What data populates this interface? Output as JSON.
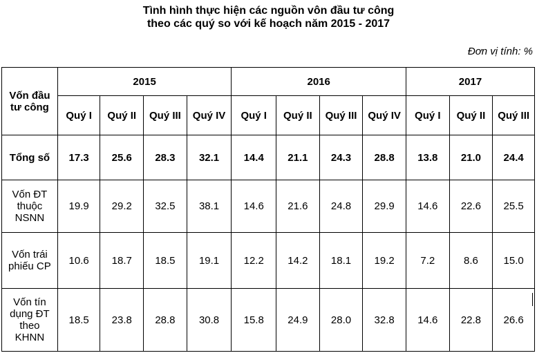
{
  "title_line1": "Tình hình thực hiện các nguồn vôn đầu tư công",
  "title_line2": "theo các quý so với kế hoạch năm 2015 - 2017",
  "unit": "Đơn vị tính: %",
  "header": {
    "corner": "Vốn đầu tư công",
    "years": [
      "2015",
      "2016",
      "2017"
    ],
    "quarters": [
      "Quý I",
      "Quý II",
      "Quý III",
      "Quý IV",
      "Quý I",
      "Quý II",
      "Quý III",
      "Quý IV",
      "Quý I",
      "Quý II",
      "Quý III"
    ]
  },
  "rows": [
    {
      "label": "Tổng số",
      "values": [
        "17.3",
        "25.6",
        "28.3",
        "32.1",
        "14.4",
        "21.1",
        "24.3",
        "28.8",
        "13.8",
        "21.0",
        "24.4"
      ]
    },
    {
      "label": "Vốn ĐT thuộc NSNN",
      "values": [
        "19.9",
        "29.2",
        "32.5",
        "38.1",
        "14.6",
        "21.6",
        "24.8",
        "29.9",
        "14.6",
        "22.6",
        "25.5"
      ]
    },
    {
      "label": "Vốn trái phiếu CP",
      "values": [
        "10.6",
        "18.7",
        "18.5",
        "19.1",
        "12.2",
        "14.2",
        "18.1",
        "19.2",
        "7.2",
        "8.6",
        "15.0"
      ]
    },
    {
      "label": "Vốn tín dụng ĐT theo KHNN",
      "values": [
        "18.5",
        "23.8",
        "28.8",
        "30.8",
        "15.8",
        "24.9",
        "28.0",
        "32.8",
        "14.6",
        "22.8",
        "26.6"
      ]
    }
  ]
}
